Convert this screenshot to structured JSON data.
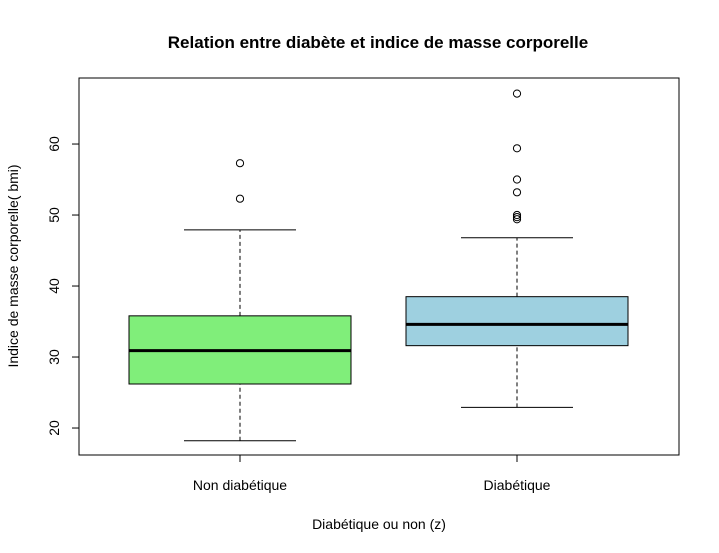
{
  "chart_data": {
    "type": "boxplot",
    "title": "Relation entre diabète et indice de masse corporelle",
    "xlabel": "Diabétique ou non (z)",
    "ylabel": "Indice de masse corporelle( bmi)",
    "ylim": [
      16.2,
      69.3
    ],
    "yticks": [
      20,
      30,
      40,
      50,
      60
    ],
    "categories": [
      "Non diabétique",
      "Diabétique"
    ],
    "series": [
      {
        "name": "Non diabétique",
        "color": "#80EE7A",
        "whisker_low": 18.2,
        "q1": 26.2,
        "median": 30.9,
        "q3": 35.8,
        "whisker_high": 47.9,
        "outliers": [
          52.3,
          57.3
        ]
      },
      {
        "name": "Diabétique",
        "color": "#9ED0E0",
        "whisker_low": 22.9,
        "q1": 31.6,
        "median": 34.6,
        "q3": 38.5,
        "whisker_high": 46.8,
        "outliers": [
          49.4,
          49.7,
          50.0,
          53.2,
          55.0,
          59.4,
          67.1
        ]
      }
    ]
  }
}
